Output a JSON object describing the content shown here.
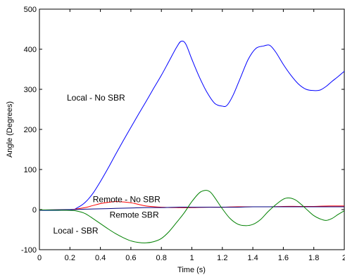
{
  "chart_data": {
    "type": "line",
    "title": "",
    "xlabel": "Time (s)",
    "ylabel": "Angle (Degrees)",
    "xlim": [
      0,
      2
    ],
    "ylim": [
      -100,
      500
    ],
    "xticks": [
      "0",
      "0.2",
      "0.4",
      "0.6",
      "0.8",
      "1",
      "1.2",
      "1.4",
      "1.6",
      "1.8",
      "2"
    ],
    "yticks": [
      "-100",
      "0",
      "100",
      "200",
      "300",
      "400",
      "500"
    ],
    "grid": false,
    "legend": "none",
    "series": [
      {
        "name": "Local - No SBR",
        "color": "#0000ff",
        "x": [
          0,
          0.2,
          0.25,
          0.3,
          0.35,
          0.4,
          0.45,
          0.5,
          0.55,
          0.6,
          0.65,
          0.7,
          0.75,
          0.8,
          0.85,
          0.9,
          0.93,
          0.96,
          1.0,
          1.05,
          1.1,
          1.15,
          1.2,
          1.23,
          1.27,
          1.32,
          1.37,
          1.42,
          1.47,
          1.51,
          1.55,
          1.6,
          1.65,
          1.7,
          1.75,
          1.8,
          1.84,
          1.88,
          1.92,
          1.96,
          2.0
        ],
        "y": [
          -2,
          -1,
          5,
          18,
          40,
          70,
          103,
          138,
          172,
          205,
          238,
          270,
          303,
          335,
          370,
          405,
          420,
          413,
          375,
          330,
          292,
          265,
          258,
          260,
          285,
          330,
          375,
          402,
          408,
          410,
          393,
          362,
          335,
          313,
          300,
          297,
          298,
          307,
          320,
          332,
          345
        ]
      },
      {
        "name": "Remote - No SBR",
        "color": "#ff0000",
        "x": [
          0,
          0.2,
          0.25,
          0.3,
          0.35,
          0.4,
          0.45,
          0.5,
          0.55,
          0.6,
          0.65,
          0.7,
          0.8,
          0.9,
          1.0,
          1.1,
          1.2,
          1.3,
          1.4,
          1.5,
          1.6,
          1.7,
          1.8,
          1.9,
          2.0
        ],
        "y": [
          -1,
          0,
          2,
          5,
          10,
          15,
          18,
          20,
          19,
          17,
          13,
          9,
          6,
          5,
          5,
          6,
          6,
          7,
          7,
          7,
          8,
          8,
          8,
          9,
          9
        ]
      },
      {
        "name": "Remote SBR",
        "color": "#000080",
        "x": [
          0,
          0.2,
          0.3,
          0.4,
          0.5,
          0.6,
          0.7,
          0.8,
          0.9,
          1.0,
          1.1,
          1.2,
          1.3,
          1.4,
          1.5,
          1.6,
          1.7,
          1.8,
          1.9,
          2.0
        ],
        "y": [
          -1,
          0,
          1,
          2,
          3,
          4,
          5,
          5,
          6,
          6,
          6,
          6,
          6,
          7,
          7,
          7,
          7,
          7,
          7,
          7
        ]
      },
      {
        "name": "Local - SBR",
        "color": "#008000",
        "x": [
          0,
          0.2,
          0.25,
          0.3,
          0.35,
          0.4,
          0.45,
          0.5,
          0.55,
          0.6,
          0.65,
          0.7,
          0.75,
          0.8,
          0.85,
          0.9,
          0.95,
          1.0,
          1.05,
          1.09,
          1.12,
          1.15,
          1.2,
          1.25,
          1.3,
          1.35,
          1.4,
          1.45,
          1.5,
          1.55,
          1.6,
          1.64,
          1.68,
          1.72,
          1.76,
          1.8,
          1.84,
          1.88,
          1.92,
          1.96,
          2.0
        ],
        "y": [
          -1,
          -2,
          -4,
          -10,
          -22,
          -35,
          -48,
          -60,
          -70,
          -78,
          -82,
          -83,
          -80,
          -72,
          -55,
          -32,
          -8,
          20,
          42,
          48,
          44,
          30,
          2,
          -22,
          -36,
          -40,
          -37,
          -25,
          -5,
          12,
          26,
          29,
          24,
          12,
          -2,
          -15,
          -23,
          -27,
          -22,
          -12,
          -3
        ]
      }
    ],
    "annotations": [
      {
        "text": "Local - No SBR",
        "x": 0.18,
        "y": 272
      },
      {
        "text": "Remote - No SBR",
        "x": 0.35,
        "y": 18
      },
      {
        "text": "Remote SBR",
        "x": 0.46,
        "y": -20
      },
      {
        "text": "Local - SBR",
        "x": 0.09,
        "y": -60
      }
    ]
  }
}
